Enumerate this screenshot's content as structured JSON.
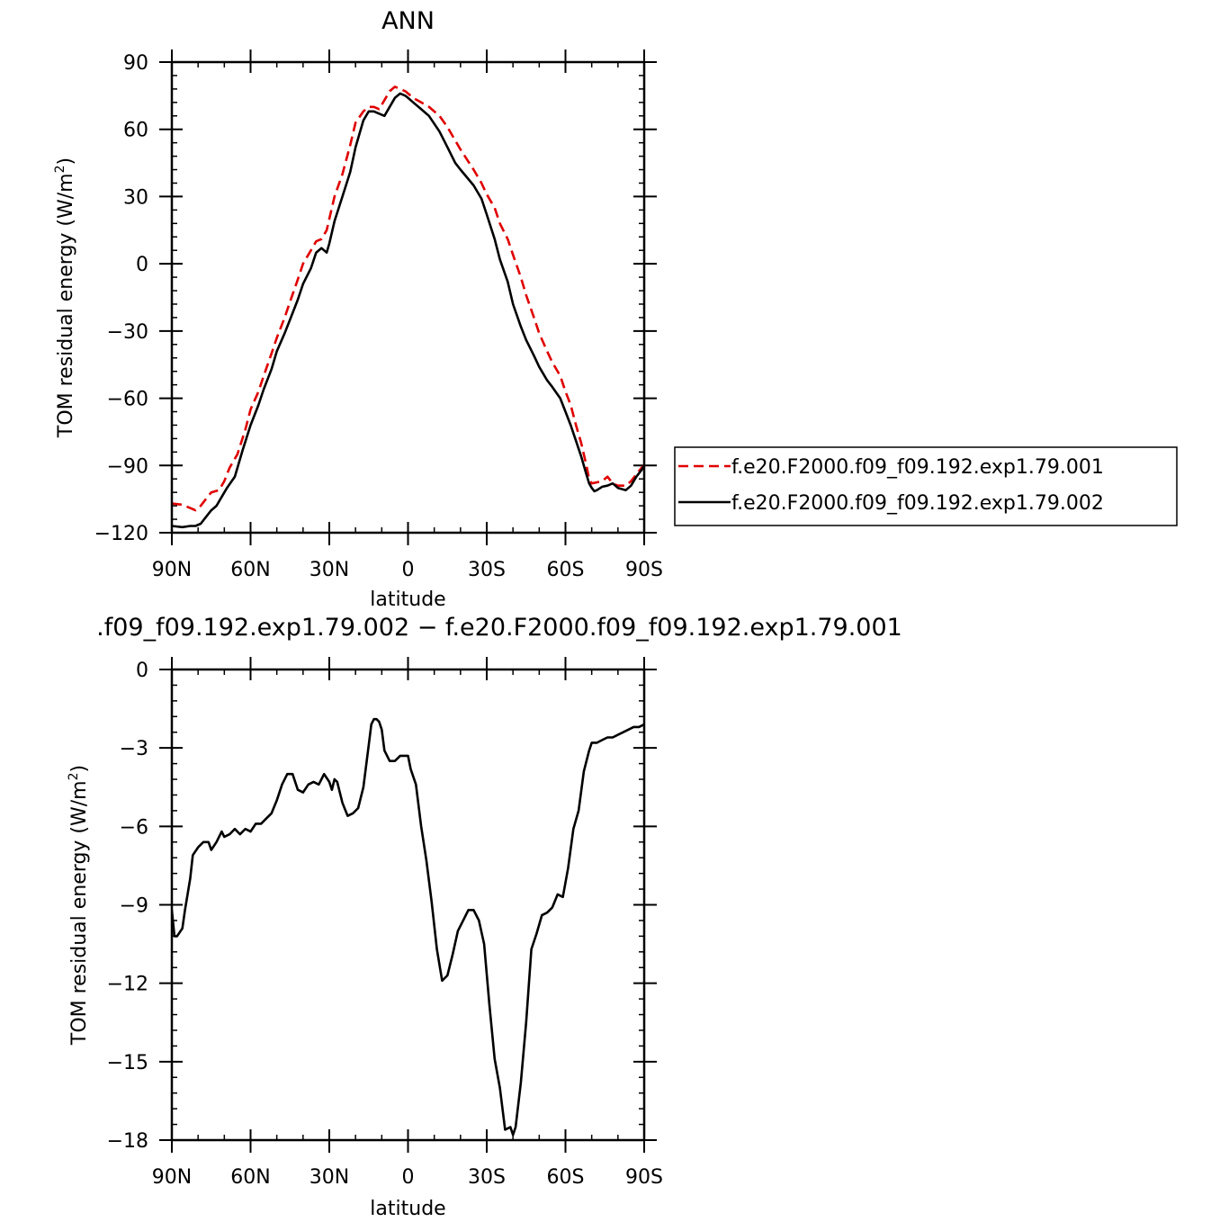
{
  "chart_data": [
    {
      "type": "line",
      "title": "ANN",
      "xlabel": "latitude",
      "ylabel": "TOM residual energy (W/m",
      "ylabel_sup": "2",
      "ylabel_end": ")",
      "xlim": [
        90,
        -90
      ],
      "ylim": [
        -120,
        90
      ],
      "xticks": [
        90,
        60,
        30,
        0,
        -30,
        -60,
        -90
      ],
      "xtick_labels": [
        "90N",
        "60N",
        "30N",
        "0",
        "30S",
        "60S",
        "90S"
      ],
      "yticks": [
        90,
        60,
        30,
        0,
        -30,
        -60,
        -90,
        -120
      ],
      "ytick_labels": [
        "90",
        "60",
        "30",
        "0",
        "−30",
        "−60",
        "−90",
        "−120"
      ],
      "grid": false,
      "legend_position": "right",
      "series": [
        {
          "name": "f.e20.F2000.f09_f09.192.exp1.79.001",
          "color": "#e00000",
          "dash": "dashed",
          "x": [
            90,
            86,
            83,
            81,
            79,
            77,
            75,
            72,
            70,
            68,
            65,
            62,
            60,
            57,
            55,
            52,
            50,
            47,
            45,
            42,
            40,
            37,
            35,
            33,
            31,
            30,
            28,
            25,
            22,
            20,
            17,
            15,
            13,
            11,
            9,
            7,
            5,
            3,
            1,
            0,
            -2,
            -5,
            -8,
            -12,
            -15,
            -18,
            -20,
            -25,
            -28,
            -30,
            -33,
            -35,
            -38,
            -40,
            -43,
            -45,
            -48,
            -50,
            -53,
            -55,
            -58,
            -60,
            -62,
            -64,
            -66,
            -68,
            -69,
            -70,
            -72,
            -74,
            -76,
            -78,
            -80,
            -83,
            -85,
            -87,
            -89,
            -90
          ],
          "y": [
            -107,
            -107.5,
            -109,
            -110,
            -108,
            -105,
            -102,
            -101,
            -97,
            -91,
            -85,
            -74,
            -65,
            -57,
            -50,
            -40,
            -33,
            -24,
            -17,
            -7,
            0,
            6,
            10,
            11,
            15,
            20,
            30,
            40,
            53,
            63,
            68,
            70,
            70,
            69,
            73,
            77,
            79,
            78,
            77,
            76,
            74,
            72,
            70,
            66,
            61,
            55,
            51,
            42,
            36,
            31,
            25,
            18,
            11,
            4,
            -6,
            -14,
            -24,
            -31,
            -39,
            -44,
            -50,
            -57,
            -63,
            -72,
            -80,
            -90,
            -96,
            -98,
            -97.5,
            -97,
            -95,
            -98,
            -99,
            -99,
            -97,
            -94,
            -91,
            -90
          ]
        },
        {
          "name": "f.e20.F2000.f09_f09.192.exp1.79.002",
          "color": "#000000",
          "dash": "solid",
          "x": [
            90,
            86,
            83,
            81,
            79,
            77,
            75,
            73,
            71,
            69,
            66,
            63,
            60,
            57,
            55,
            52,
            50,
            47,
            45,
            42,
            40,
            37,
            35,
            33,
            31,
            30,
            28,
            25,
            22,
            20,
            17,
            15,
            13,
            11,
            9,
            7,
            5,
            3,
            1,
            0,
            -2,
            -5,
            -8,
            -12,
            -15,
            -18,
            -20,
            -25,
            -28,
            -30,
            -33,
            -35,
            -38,
            -40,
            -43,
            -45,
            -48,
            -50,
            -53,
            -55,
            -58,
            -60,
            -62,
            -64,
            -66,
            -68,
            -69,
            -70,
            -71,
            -72,
            -74,
            -76,
            -78,
            -80,
            -83,
            -85,
            -87,
            -89,
            -90
          ],
          "y": [
            -117,
            -117.5,
            -117,
            -117,
            -116,
            -113,
            -110,
            -108,
            -104,
            -100,
            -95,
            -83,
            -72,
            -63,
            -56,
            -47,
            -39,
            -31,
            -25,
            -16,
            -9,
            -2,
            5,
            7,
            5,
            9,
            19,
            30,
            41,
            52,
            64,
            68,
            68,
            67,
            66,
            70,
            74,
            76,
            75,
            74,
            72,
            69,
            66,
            59,
            52,
            45,
            42,
            35,
            29,
            22,
            11,
            2,
            -8,
            -18,
            -28,
            -34,
            -41,
            -46,
            -52,
            -55,
            -60,
            -66,
            -72,
            -79,
            -86,
            -94,
            -98,
            -100,
            -101.5,
            -101,
            -99.5,
            -99,
            -98,
            -100,
            -101,
            -99,
            -95,
            -92,
            -90
          ]
        }
      ]
    },
    {
      "type": "line",
      "title": ".f09_f09.192.exp1.79.002 − f.e20.F2000.f09_f09.192.exp1.79.001",
      "xlabel": "latitude",
      "ylabel": "TOM residual energy (W/m",
      "ylabel_sup": "2",
      "ylabel_end": ")",
      "xlim": [
        90,
        -90
      ],
      "ylim": [
        -18,
        0
      ],
      "xticks": [
        90,
        60,
        30,
        0,
        -30,
        -60,
        -90
      ],
      "xtick_labels": [
        "90N",
        "60N",
        "30N",
        "0",
        "30S",
        "60S",
        "90S"
      ],
      "yticks": [
        0,
        -3,
        -6,
        -9,
        -12,
        -15,
        -18
      ],
      "ytick_labels": [
        "0",
        "−3",
        "−6",
        "−9",
        "−12",
        "−15",
        "−18"
      ],
      "grid": false,
      "series": [
        {
          "name": "",
          "color": "#000000",
          "dash": "solid",
          "x": [
            90,
            89,
            88,
            86,
            85,
            83,
            82,
            80,
            78,
            76,
            75,
            73,
            71,
            70,
            68,
            66,
            64,
            62,
            60,
            58,
            56,
            54,
            52,
            50,
            48,
            46,
            45,
            44,
            42,
            40,
            38,
            36,
            34,
            33,
            32,
            30,
            29,
            28,
            27,
            25,
            23,
            21,
            19,
            17,
            15,
            14,
            13,
            12,
            11,
            10,
            9,
            7,
            5,
            3,
            1,
            0,
            -1,
            -3,
            -5,
            -7,
            -9,
            -11,
            -13,
            -15,
            -17,
            -19,
            -21,
            -23,
            -25,
            -27,
            -29,
            -31,
            -33,
            -35,
            -37,
            -39,
            -40,
            -41,
            -43,
            -45,
            -47,
            -49,
            -51,
            -53,
            -55,
            -57,
            -59,
            -61,
            -63,
            -65,
            -67,
            -69,
            -70,
            -72,
            -74,
            -76,
            -78,
            -80,
            -82,
            -84,
            -86,
            -88,
            -90
          ],
          "y": [
            -9.2,
            -10.2,
            -10.2,
            -9.9,
            -9.2,
            -8.0,
            -7.1,
            -6.8,
            -6.6,
            -6.6,
            -6.9,
            -6.6,
            -6.2,
            -6.4,
            -6.3,
            -6.1,
            -6.3,
            -6.1,
            -6.2,
            -5.9,
            -5.9,
            -5.7,
            -5.5,
            -5.0,
            -4.4,
            -4.0,
            -4.0,
            -4.0,
            -4.6,
            -4.7,
            -4.4,
            -4.3,
            -4.4,
            -4.2,
            -4.0,
            -4.3,
            -4.6,
            -4.2,
            -4.3,
            -5.1,
            -5.6,
            -5.5,
            -5.3,
            -4.5,
            -2.9,
            -2.1,
            -1.9,
            -1.9,
            -2.0,
            -2.3,
            -3.1,
            -3.5,
            -3.5,
            -3.3,
            -3.3,
            -3.3,
            -3.8,
            -4.4,
            -6.0,
            -7.3,
            -8.9,
            -10.7,
            -11.9,
            -11.7,
            -10.9,
            -10.0,
            -9.6,
            -9.2,
            -9.2,
            -9.6,
            -10.5,
            -12.8,
            -14.9,
            -16.0,
            -17.6,
            -17.5,
            -17.8,
            -17.5,
            -15.8,
            -13.5,
            -10.7,
            -10.1,
            -9.4,
            -9.3,
            -9.1,
            -8.6,
            -8.7,
            -7.6,
            -6.1,
            -5.4,
            -3.9,
            -3.1,
            -2.8,
            -2.8,
            -2.7,
            -2.6,
            -2.6,
            -2.5,
            -2.4,
            -2.3,
            -2.2,
            -2.2,
            -2.1
          ]
        }
      ]
    }
  ]
}
